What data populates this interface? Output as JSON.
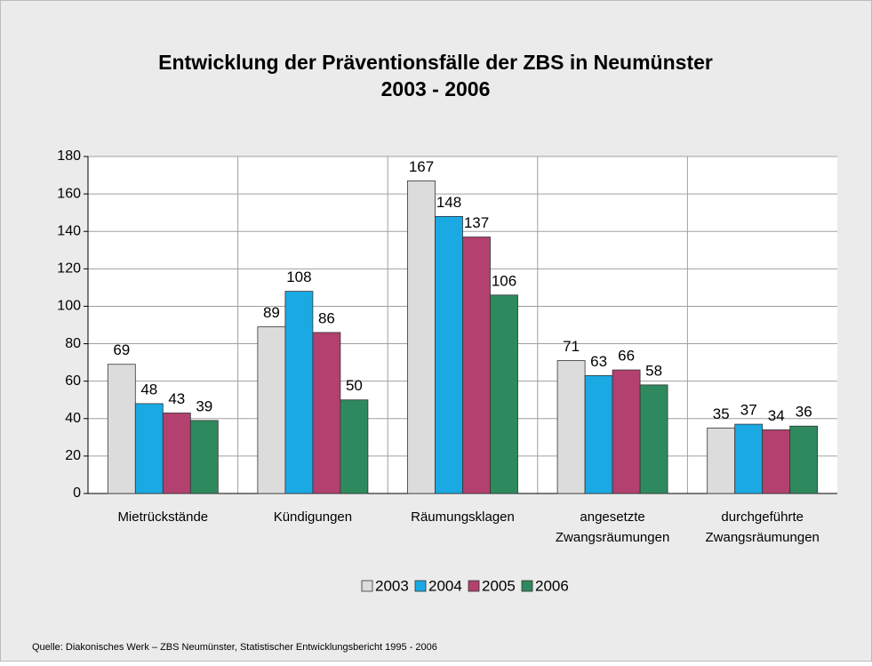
{
  "chart_data": {
    "type": "bar",
    "title": "Entwicklung der Präventionsfälle der ZBS in Neumünster",
    "subtitle": "2003 - 2006",
    "categories": [
      "Mietrückstände",
      "Kündigungen",
      "Räumungsklagen",
      "angesetzte Zwangsräumungen",
      "durchgeführte Zwangsräumungen"
    ],
    "series": [
      {
        "name": "2003",
        "color": "#dcdcdc",
        "values": [
          69,
          89,
          167,
          71,
          35
        ]
      },
      {
        "name": "2004",
        "color": "#1ba9e3",
        "values": [
          48,
          108,
          148,
          63,
          37
        ]
      },
      {
        "name": "2005",
        "color": "#b3416f",
        "values": [
          43,
          86,
          137,
          66,
          34
        ]
      },
      {
        "name": "2006",
        "color": "#2e8a5e",
        "values": [
          39,
          50,
          106,
          58,
          36
        ]
      }
    ],
    "ylim": [
      0,
      180
    ],
    "yticks": [
      0,
      20,
      40,
      60,
      80,
      100,
      120,
      140,
      160,
      180
    ],
    "grid": true,
    "legend": "bottom",
    "source": "Quelle: Diakonisches Werk – ZBS Neumünster, Statistischer Entwicklungsbericht 1995 - 2006"
  }
}
